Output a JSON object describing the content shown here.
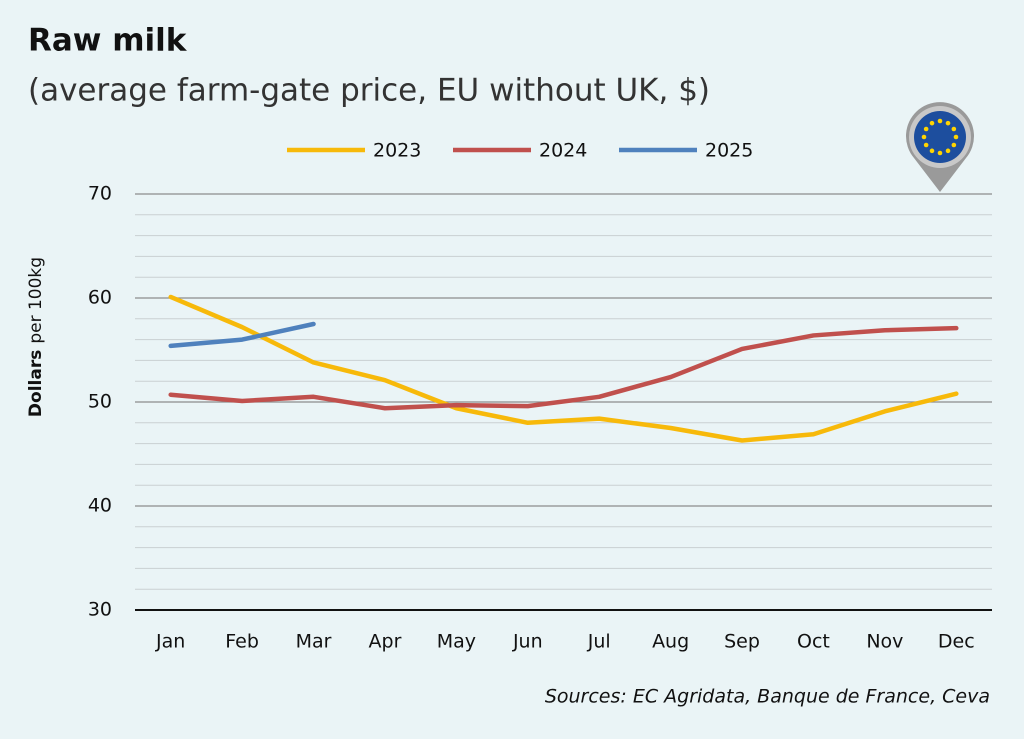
{
  "chart_data": {
    "type": "line",
    "title": "Raw milk",
    "subtitle": "(average farm-gate price, EU without UK, $)",
    "y_label": {
      "bold": "Dollars",
      "rest": "per 100kg"
    },
    "source": "Sources: EC Agridata, Banque de France, Ceva",
    "categories": [
      "Jan",
      "Feb",
      "Mar",
      "Apr",
      "May",
      "Jun",
      "Jul",
      "Aug",
      "Sep",
      "Oct",
      "Nov",
      "Dec"
    ],
    "series": [
      {
        "name": "2023",
        "color": "#f7b90a",
        "values": [
          60.1,
          57.2,
          53.8,
          52.1,
          49.4,
          48.0,
          48.4,
          47.5,
          46.3,
          46.9,
          49.1,
          50.8
        ]
      },
      {
        "name": "2024",
        "color": "#c0504d",
        "values": [
          50.7,
          50.1,
          50.5,
          49.4,
          49.7,
          49.6,
          50.5,
          52.4,
          55.1,
          56.4,
          56.9,
          57.1
        ]
      },
      {
        "name": "2025",
        "color": "#4f81bd",
        "values": [
          55.4,
          56.0,
          57.5,
          null,
          null,
          null,
          null,
          null,
          null,
          null,
          null,
          null
        ]
      }
    ],
    "ylim": [
      30,
      70
    ],
    "yticks": [
      30,
      40,
      50,
      60,
      70
    ],
    "yticks_minor": [
      32,
      34,
      36,
      38,
      42,
      44,
      46,
      48,
      52,
      54,
      56,
      58,
      62,
      64,
      66,
      68
    ],
    "grid": true,
    "legend": "top"
  }
}
